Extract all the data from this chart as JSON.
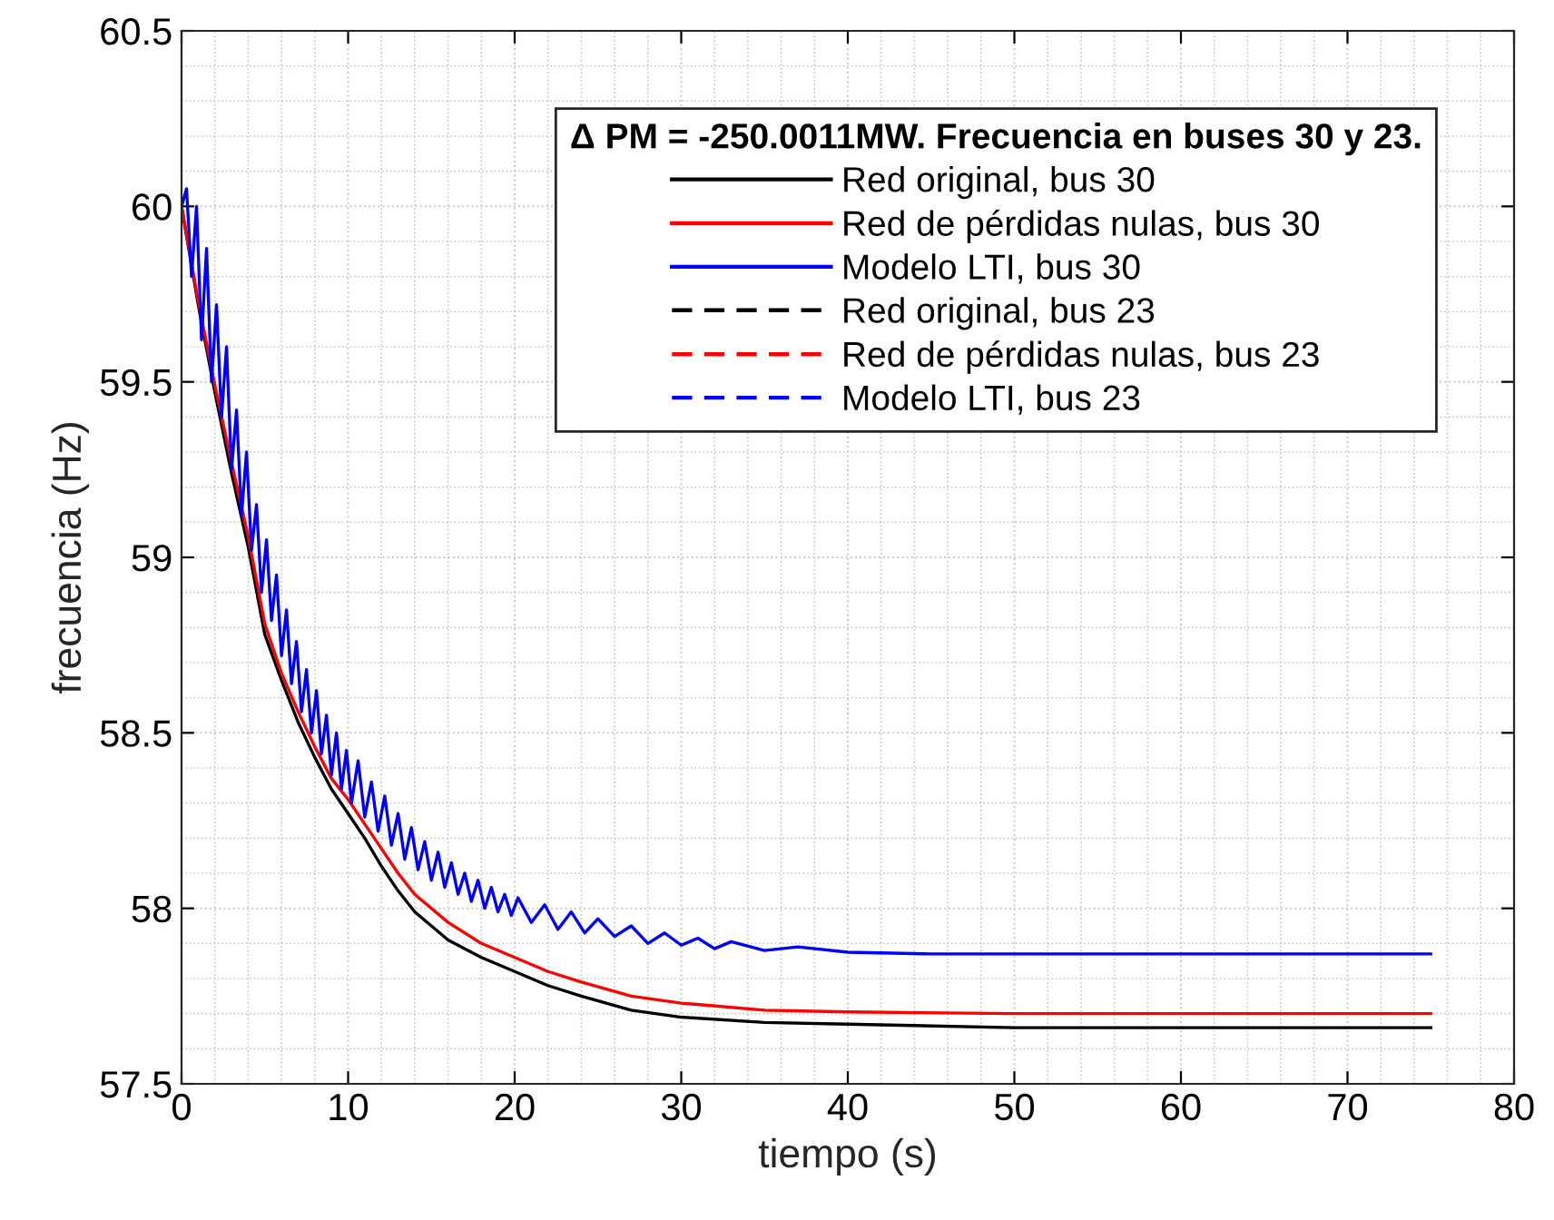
{
  "chart_data": {
    "type": "line",
    "xlabel": "tiempo (s)",
    "ylabel": "frecuencia (Hz)",
    "legend_title": "Δ PM = -250.0011MW. Frecuencia en buses 30 y 23.",
    "xlim": [
      0,
      80
    ],
    "xticks": [
      0,
      10,
      20,
      30,
      40,
      50,
      60,
      70,
      80
    ],
    "ylim": [
      57.5,
      60.5
    ],
    "yticks": [
      57.5,
      58,
      58.5,
      59,
      59.5,
      60,
      60.5
    ],
    "grid": true,
    "legend": "top right",
    "series": [
      {
        "name": "Red original, bus 30",
        "color": "#000000",
        "line_style": "solid",
        "x": [
          0,
          1,
          2,
          3,
          4,
          5,
          6,
          7,
          8,
          9,
          10,
          11,
          12,
          13,
          14,
          16,
          18,
          20,
          22,
          24,
          27,
          30,
          35,
          40,
          50,
          75
        ],
        "values": [
          60.0,
          59.72,
          59.47,
          59.24,
          59.03,
          58.78,
          58.65,
          58.53,
          58.43,
          58.34,
          58.27,
          58.2,
          58.12,
          58.05,
          57.99,
          57.91,
          57.86,
          57.82,
          57.78,
          57.75,
          57.71,
          57.69,
          57.675,
          57.67,
          57.66,
          57.66
        ]
      },
      {
        "name": "Red de pérdidas nulas, bus 30",
        "color": "#ff0000",
        "line_style": "solid",
        "x": [
          0,
          1,
          2,
          3,
          4,
          5,
          6,
          7,
          8,
          9,
          10,
          11,
          12,
          13,
          14,
          16,
          18,
          20,
          22,
          24,
          27,
          30,
          35,
          40,
          50,
          75
        ],
        "values": [
          60.0,
          59.73,
          59.49,
          59.27,
          59.06,
          58.81,
          58.67,
          58.56,
          58.46,
          58.37,
          58.31,
          58.24,
          58.17,
          58.1,
          58.04,
          57.96,
          57.9,
          57.86,
          57.82,
          57.79,
          57.75,
          57.73,
          57.71,
          57.705,
          57.7,
          57.7
        ]
      },
      {
        "name": "Modelo LTI, bus 30",
        "color": "#0000ff",
        "line_style": "solid",
        "x": [
          0,
          0.3,
          0.6,
          0.9,
          1.2,
          1.5,
          1.8,
          2.1,
          2.4,
          2.7,
          3.0,
          3.3,
          3.6,
          3.9,
          4.2,
          4.5,
          4.8,
          5.1,
          5.4,
          5.7,
          6.0,
          6.3,
          6.6,
          6.9,
          7.2,
          7.5,
          7.8,
          8.1,
          8.4,
          8.7,
          9.0,
          9.3,
          9.6,
          9.9,
          10.2,
          10.6,
          11.0,
          11.4,
          11.8,
          12.2,
          12.6,
          13.0,
          13.4,
          13.8,
          14.2,
          14.6,
          15.0,
          15.4,
          15.8,
          16.2,
          16.6,
          17.0,
          17.4,
          17.8,
          18.2,
          18.6,
          19.0,
          19.4,
          19.8,
          20.2,
          21,
          21.8,
          22.6,
          23.4,
          24.2,
          25,
          26,
          27,
          28,
          29,
          30,
          31,
          32,
          33,
          35,
          37,
          40,
          45,
          50,
          75
        ],
        "values": [
          60.0,
          60.05,
          59.8,
          60.0,
          59.62,
          59.88,
          59.5,
          59.72,
          59.4,
          59.6,
          59.25,
          59.42,
          59.12,
          59.3,
          59.02,
          59.15,
          58.9,
          59.05,
          58.82,
          58.95,
          58.72,
          58.85,
          58.64,
          58.76,
          58.56,
          58.68,
          58.5,
          58.62,
          58.44,
          58.55,
          58.38,
          58.5,
          58.34,
          58.45,
          58.3,
          58.42,
          58.26,
          58.36,
          58.22,
          58.32,
          58.18,
          58.27,
          58.14,
          58.23,
          58.11,
          58.19,
          58.08,
          58.16,
          58.06,
          58.13,
          58.04,
          58.1,
          58.02,
          58.08,
          58.0,
          58.06,
          57.99,
          58.04,
          57.98,
          58.03,
          57.96,
          58.01,
          57.94,
          57.99,
          57.93,
          57.97,
          57.92,
          57.95,
          57.9,
          57.93,
          57.895,
          57.915,
          57.885,
          57.905,
          57.88,
          57.89,
          57.875,
          57.87,
          57.87,
          57.87
        ]
      },
      {
        "name": "Red original, bus 23",
        "color": "#000000",
        "line_style": "dashed",
        "values": [
          null
        ]
      },
      {
        "name": "Red de pérdidas nulas, bus 23",
        "color": "#ff0000",
        "line_style": "dashed",
        "values": [
          null
        ]
      },
      {
        "name": "Modelo LTI, bus 23",
        "color": "#0000ff",
        "line_style": "dashed",
        "values": [
          null
        ]
      }
    ]
  }
}
